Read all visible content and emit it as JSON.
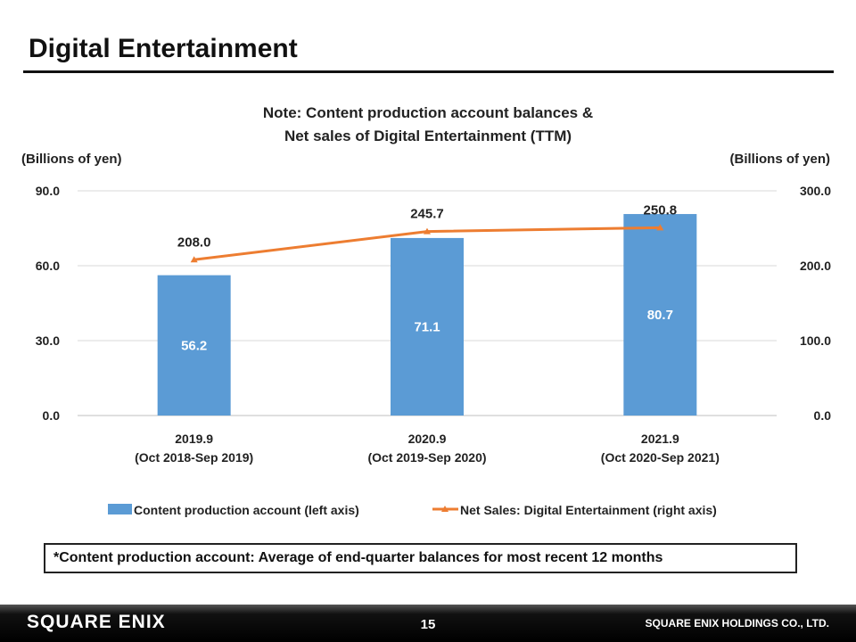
{
  "slide": {
    "title": "Digital Entertainment",
    "page_number": "15",
    "company": "SQUARE ENIX HOLDINGS CO., LTD.",
    "logo_text": "SQUARE ENIX",
    "note": "*Content production account: Average of end-quarter balances for most recent 12 months"
  },
  "chart_data": {
    "type": "bar",
    "title": "Note: Content production account balances &",
    "subtitle": "Net sales of Digital Entertainment (TTM)",
    "left_unit": "(Billions of yen)",
    "right_unit": "(Billions of yen)",
    "categories": [
      "2019.9",
      "2020.9",
      "2021.9"
    ],
    "category_sublabels": [
      "(Oct 2018-Sep 2019)",
      "(Oct 2019-Sep 2020)",
      "(Oct 2020-Sep 2021)"
    ],
    "ylim": [
      0,
      90
    ],
    "y2lim": [
      0,
      300
    ],
    "yticks": [
      "0.0",
      "30.0",
      "60.0",
      "90.0"
    ],
    "y2ticks": [
      "0.0",
      "100.0",
      "200.0",
      "300.0"
    ],
    "grid": true,
    "legend_position": "bottom",
    "series": [
      {
        "name": "Content production account (left axis)",
        "type": "bar",
        "axis": "left",
        "color": "#5b9bd5",
        "values": [
          56.2,
          71.1,
          80.7
        ],
        "labels": [
          "56.2",
          "71.1",
          "80.7"
        ]
      },
      {
        "name": "Net Sales: Digital Entertainment (right axis)",
        "type": "line",
        "axis": "right",
        "color": "#ed7d31",
        "values": [
          208.0,
          245.7,
          250.8
        ],
        "labels": [
          "208.0",
          "245.7",
          "250.8"
        ]
      }
    ]
  }
}
